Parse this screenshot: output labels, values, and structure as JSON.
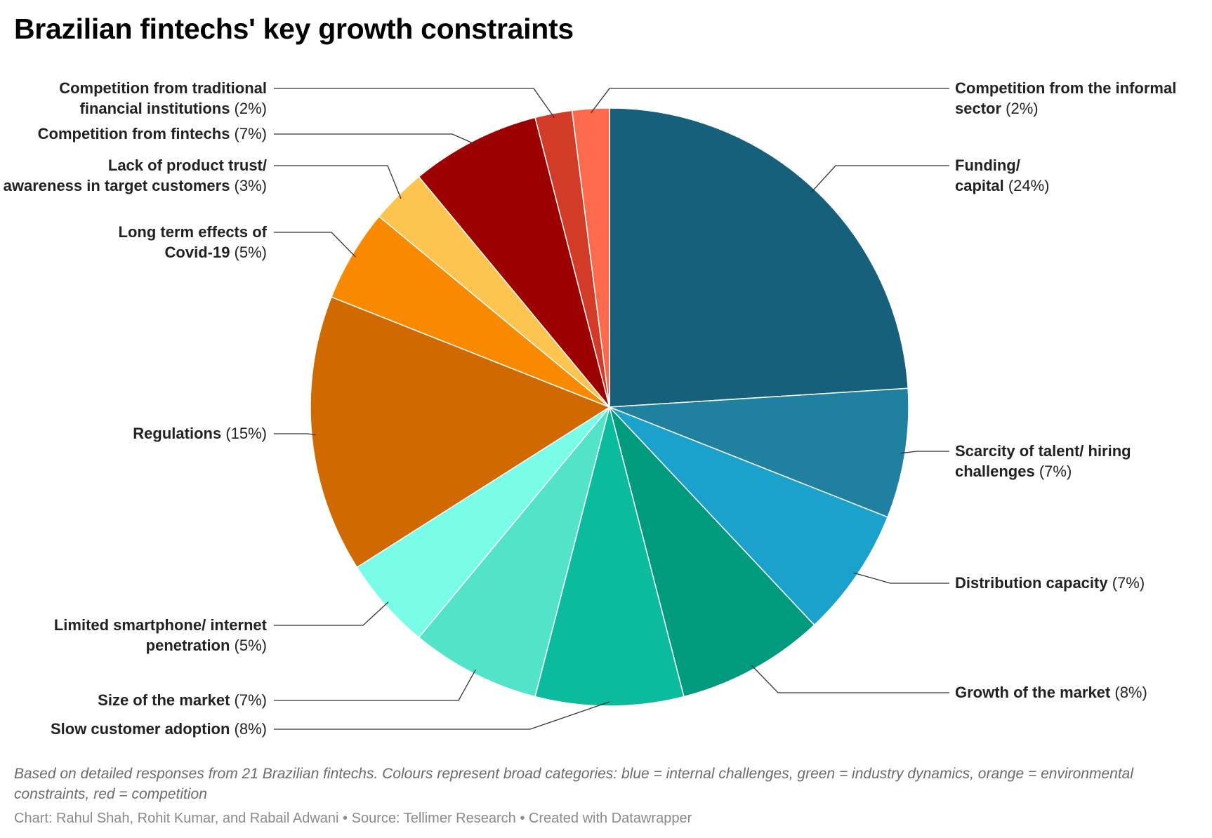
{
  "title": "Brazilian fintechs' key growth constraints",
  "notes": "Based on detailed responses from 21 Brazilian fintechs. Colours represent broad categories: blue = internal challenges, green = industry dynamics, orange = environmental constraints, red = competition",
  "credits": "Chart: Rahul Shah, Rohit Kumar, and Rabail Adwani • Source: Tellimer Research • Created with Datawrapper",
  "chart_data": {
    "type": "pie",
    "unit": "%",
    "slices": [
      {
        "label": "Funding/ capital",
        "value": 24,
        "display": "(24%)",
        "color": "#17607c"
      },
      {
        "label": "Scarcity of talent/ hiring challenges",
        "value": 7,
        "display": "(7%)",
        "color": "#1f80a0"
      },
      {
        "label": "Distribution capacity",
        "value": 7,
        "display": "(7%)",
        "color": "#1aa2cc"
      },
      {
        "label": "Growth of the market",
        "value": 8,
        "display": "(8%)",
        "color": "#009a7f"
      },
      {
        "label": "Slow customer adoption",
        "value": 8,
        "display": "(8%)",
        "color": "#0bbb9e"
      },
      {
        "label": "Size of the market",
        "value": 7,
        "display": "(7%)",
        "color": "#53e3c9"
      },
      {
        "label": "Limited smartphone/ internet penetration",
        "value": 5,
        "display": "(5%)",
        "color": "#79fde8"
      },
      {
        "label": "Regulations",
        "value": 15,
        "display": "(15%)",
        "color": "#d06a00"
      },
      {
        "label": "Long term effects of Covid-19",
        "value": 5,
        "display": "(5%)",
        "color": "#f98a00"
      },
      {
        "label": "Lack of product trust/ awareness in target customers",
        "value": 3,
        "display": "(3%)",
        "color": "#fdc44f"
      },
      {
        "label": "Competition from fintechs",
        "value": 7,
        "display": "(7%)",
        "color": "#9c0000"
      },
      {
        "label": "Competition from traditional financial institutions",
        "value": 2,
        "display": "(2%)",
        "color": "#d13b27"
      },
      {
        "label": "Competition from the informal sector",
        "value": 2,
        "display": "(2%)",
        "color": "#fd6a4d"
      }
    ]
  }
}
